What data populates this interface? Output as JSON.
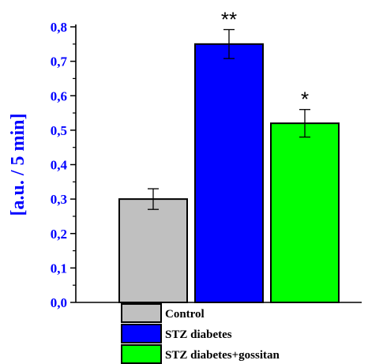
{
  "chart_data": {
    "type": "bar",
    "categories": [
      "Control",
      "STZ diabetes",
      "STZ diabetes+gossitan"
    ],
    "values": [
      0.3,
      0.75,
      0.52
    ],
    "errors": [
      0.03,
      0.042,
      0.04
    ],
    "colors": [
      "#c0c0c0",
      "#0000ff",
      "#00ff00"
    ],
    "significance": [
      "",
      "**",
      "*"
    ],
    "title": "",
    "xlabel": "",
    "ylabel": "[a.u. / 5 min]",
    "ylim": [
      0,
      0.8
    ],
    "yticks": [
      "0,0",
      "0,1",
      "0,2",
      "0,3",
      "0,4",
      "0,5",
      "0,6",
      "0,7",
      "0,8"
    ],
    "grid": false,
    "legend_position": "bottom",
    "axis_color": "#0000ff"
  }
}
